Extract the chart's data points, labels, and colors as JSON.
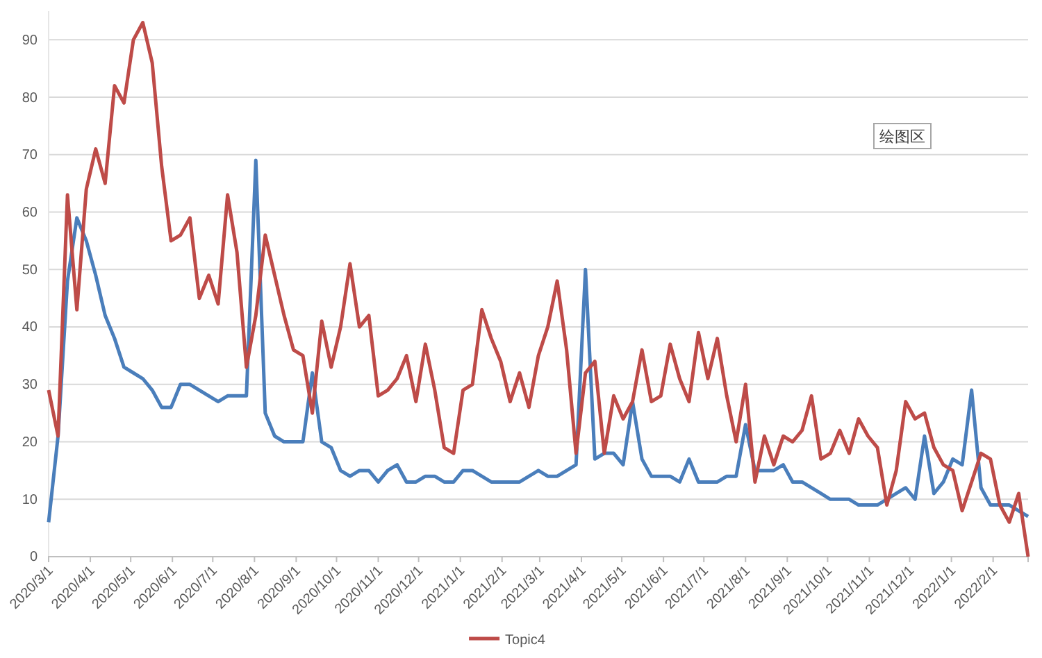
{
  "chart_data": {
    "type": "line",
    "x": [
      "2020-03-01",
      "2020-03-08",
      "2020-03-15",
      "2020-03-22",
      "2020-03-29",
      "2020-04-05",
      "2020-04-12",
      "2020-04-19",
      "2020-04-26",
      "2020-05-03",
      "2020-05-10",
      "2020-05-17",
      "2020-05-24",
      "2020-05-31",
      "2020-06-07",
      "2020-06-14",
      "2020-06-21",
      "2020-06-28",
      "2020-07-05",
      "2020-07-12",
      "2020-07-19",
      "2020-07-26",
      "2020-08-02",
      "2020-08-09",
      "2020-08-16",
      "2020-08-23",
      "2020-08-30",
      "2020-09-06",
      "2020-09-13",
      "2020-09-20",
      "2020-09-27",
      "2020-10-04",
      "2020-10-11",
      "2020-10-18",
      "2020-10-25",
      "2020-11-01",
      "2020-11-08",
      "2020-11-15",
      "2020-11-22",
      "2020-11-29",
      "2020-12-06",
      "2020-12-13",
      "2020-12-20",
      "2020-12-27",
      "2021-01-03",
      "2021-01-10",
      "2021-01-17",
      "2021-01-24",
      "2021-01-31",
      "2021-02-07",
      "2021-02-14",
      "2021-02-21",
      "2021-02-28",
      "2021-03-07",
      "2021-03-14",
      "2021-03-21",
      "2021-03-28",
      "2021-04-04",
      "2021-04-11",
      "2021-04-18",
      "2021-04-25",
      "2021-05-02",
      "2021-05-09",
      "2021-05-16",
      "2021-05-23",
      "2021-05-30",
      "2021-06-06",
      "2021-06-13",
      "2021-06-20",
      "2021-06-27",
      "2021-07-04",
      "2021-07-11",
      "2021-07-18",
      "2021-07-25",
      "2021-08-01",
      "2021-08-08",
      "2021-08-15",
      "2021-08-22",
      "2021-08-29",
      "2021-09-05",
      "2021-09-12",
      "2021-09-19",
      "2021-09-26",
      "2021-10-03",
      "2021-10-10",
      "2021-10-17",
      "2021-10-24",
      "2021-10-31",
      "2021-11-07",
      "2021-11-14",
      "2021-11-21",
      "2021-11-28",
      "2021-12-05",
      "2021-12-12",
      "2021-12-19",
      "2021-12-26",
      "2022-01-02",
      "2022-01-09",
      "2022-01-16",
      "2022-01-23",
      "2022-01-30",
      "2022-02-06",
      "2022-02-13",
      "2022-02-20",
      "2022-02-27"
    ],
    "series": [
      {
        "color": "#4a7ebb",
        "values": [
          6,
          21,
          48,
          59,
          55,
          49,
          42,
          38,
          33,
          32,
          31,
          29,
          26,
          26,
          30,
          30,
          29,
          28,
          27,
          28,
          28,
          28,
          69,
          25,
          21,
          20,
          20,
          20,
          32,
          20,
          19,
          15,
          14,
          15,
          15,
          13,
          15,
          16,
          13,
          13,
          14,
          14,
          13,
          13,
          15,
          15,
          14,
          13,
          13,
          13,
          13,
          14,
          15,
          14,
          14,
          15,
          16,
          50,
          17,
          18,
          18,
          16,
          27,
          17,
          14,
          14,
          14,
          13,
          17,
          13,
          13,
          13,
          14,
          14,
          23,
          15,
          15,
          15,
          16,
          13,
          13,
          12,
          11,
          10,
          10,
          10,
          9,
          9,
          9,
          10,
          11,
          12,
          10,
          21,
          11,
          13,
          17,
          16,
          29,
          12,
          9,
          9,
          9,
          8,
          7
        ]
      },
      {
        "name": "Topic4",
        "color": "#be4b48",
        "values": [
          29,
          21,
          63,
          43,
          64,
          71,
          65,
          82,
          79,
          90,
          93,
          86,
          68,
          55,
          56,
          59,
          45,
          49,
          44,
          63,
          53,
          33,
          42,
          56,
          49,
          42,
          36,
          35,
          25,
          41,
          33,
          40,
          51,
          40,
          42,
          28,
          29,
          31,
          35,
          27,
          37,
          29,
          19,
          18,
          29,
          30,
          43,
          38,
          34,
          27,
          32,
          26,
          35,
          40,
          48,
          36,
          18,
          32,
          34,
          18,
          28,
          24,
          27,
          36,
          27,
          28,
          37,
          31,
          27,
          39,
          31,
          38,
          28,
          20,
          30,
          13,
          21,
          16,
          21,
          20,
          22,
          28,
          17,
          18,
          22,
          18,
          24,
          21,
          19,
          9,
          15,
          27,
          24,
          25,
          19,
          16,
          15,
          8,
          13,
          18,
          17,
          9,
          6,
          11,
          0
        ]
      }
    ],
    "xlim": [
      "2020-03-01",
      "2022-02-27"
    ],
    "xticks": [
      {
        "value": "2020-03-01",
        "label": "2020/3/1"
      },
      {
        "value": "2020-04-01",
        "label": "2020/4/1"
      },
      {
        "value": "2020-05-01",
        "label": "2020/5/1"
      },
      {
        "value": "2020-06-01",
        "label": "2020/6/1"
      },
      {
        "value": "2020-07-01",
        "label": "2020/7/1"
      },
      {
        "value": "2020-08-01",
        "label": "2020/8/1"
      },
      {
        "value": "2020-09-01",
        "label": "2020/9/1"
      },
      {
        "value": "2020-10-01",
        "label": "2020/10/1"
      },
      {
        "value": "2020-11-01",
        "label": "2020/11/1"
      },
      {
        "value": "2020-12-01",
        "label": "2020/12/1"
      },
      {
        "value": "2021-01-01",
        "label": "2021/1/1"
      },
      {
        "value": "2021-02-01",
        "label": "2021/2/1"
      },
      {
        "value": "2021-03-01",
        "label": "2021/3/1"
      },
      {
        "value": "2021-04-01",
        "label": "2021/4/1"
      },
      {
        "value": "2021-05-01",
        "label": "2021/5/1"
      },
      {
        "value": "2021-06-01",
        "label": "2021/6/1"
      },
      {
        "value": "2021-07-01",
        "label": "2021/7/1"
      },
      {
        "value": "2021-08-01",
        "label": "2021/8/1"
      },
      {
        "value": "2021-09-01",
        "label": "2021/9/1"
      },
      {
        "value": "2021-10-01",
        "label": "2021/10/1"
      },
      {
        "value": "2021-11-01",
        "label": "2021/11/1"
      },
      {
        "value": "2021-12-01",
        "label": "2021/12/1"
      },
      {
        "value": "2022-01-01",
        "label": "2022/1/1"
      },
      {
        "value": "2022-02-01",
        "label": "2022/2/1"
      }
    ],
    "ylim": [
      0,
      95
    ],
    "yticks": [
      0,
      10,
      20,
      30,
      40,
      50,
      60,
      70,
      80,
      90
    ],
    "grid": "y",
    "legend": "bottom",
    "marker": "none",
    "line_style": "solid",
    "annotations": [
      "绘图区"
    ]
  }
}
